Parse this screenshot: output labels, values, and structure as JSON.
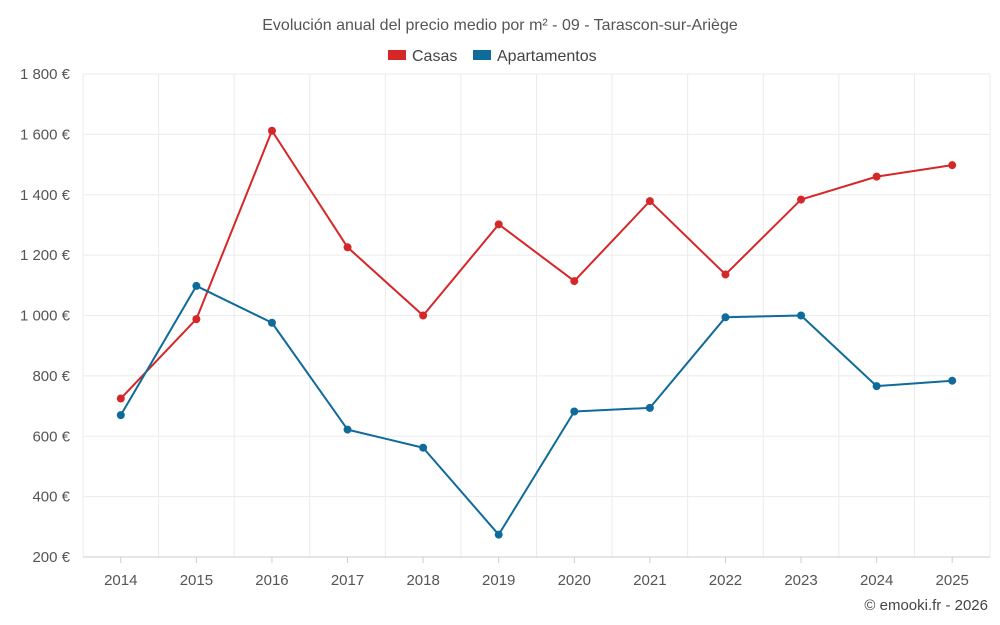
{
  "chart_data": {
    "type": "line",
    "title": "Evolución anual del precio medio por m² - 09 - Tarascon-sur-Ariège",
    "categories": [
      "2014",
      "2015",
      "2016",
      "2017",
      "2018",
      "2019",
      "2020",
      "2021",
      "2022",
      "2023",
      "2024",
      "2025"
    ],
    "series": [
      {
        "name": "Casas",
        "color": "#d62728",
        "values": [
          725,
          988,
          1612,
          1226,
          1000,
          1302,
          1114,
          1379,
          1136,
          1384,
          1460,
          1498
        ]
      },
      {
        "name": "Apartamentos",
        "color": "#0f6b9a",
        "values": [
          670,
          1098,
          976,
          622,
          562,
          274,
          682,
          694,
          994,
          1000,
          766,
          784
        ]
      }
    ],
    "ylim": [
      200,
      1800
    ],
    "yticks": [
      200,
      400,
      600,
      800,
      1000,
      1200,
      1400,
      1600,
      1800
    ],
    "ytick_labels": [
      "200 €",
      "400 €",
      "600 €",
      "800 €",
      "1 000 €",
      "1 200 €",
      "1 400 €",
      "1 600 €",
      "1 800 €"
    ],
    "xlabel": "",
    "ylabel": "",
    "legend_position": "top-center",
    "grid": true
  },
  "credit": "© emooki.fr - 2026"
}
